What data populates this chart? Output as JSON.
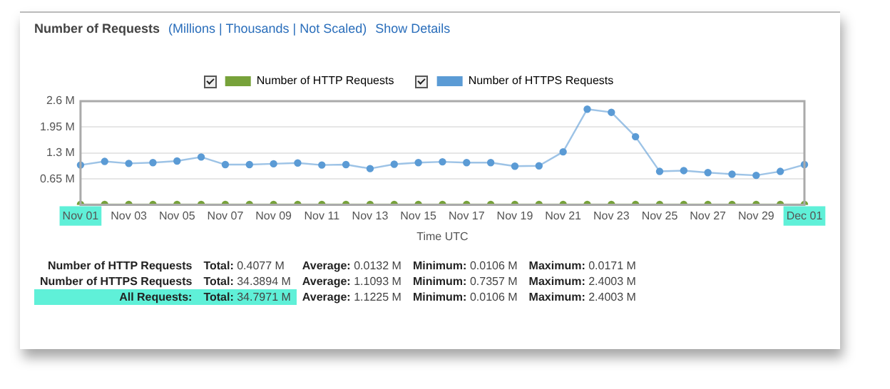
{
  "chart_data": {
    "type": "line",
    "title": "Number of Requests",
    "xlabel": "Time UTC",
    "categories": [
      "Nov 01",
      null,
      "Nov 03",
      null,
      "Nov 05",
      null,
      "Nov 07",
      null,
      "Nov 09",
      null,
      "Nov 11",
      null,
      "Nov 13",
      null,
      "Nov 15",
      null,
      "Nov 17",
      null,
      "Nov 19",
      null,
      "Nov 21",
      null,
      "Nov 23",
      null,
      "Nov 25",
      null,
      "Nov 27",
      null,
      "Nov 29",
      null,
      "Dec 01"
    ],
    "series": [
      {
        "name": "Number of HTTP Requests",
        "color": "#77a23a",
        "values": [
          0.01,
          0.01,
          0.01,
          0.01,
          0.01,
          0.01,
          0.01,
          0.01,
          0.01,
          0.01,
          0.01,
          0.01,
          0.01,
          0.01,
          0.01,
          0.01,
          0.01,
          0.01,
          0.01,
          0.01,
          0.01,
          0.01,
          0.01,
          0.01,
          0.01,
          0.01,
          0.01,
          0.01,
          0.01,
          0.01,
          0.01
        ]
      },
      {
        "name": "Number of HTTPS Requests",
        "color": "#5b9bd5",
        "values": [
          1.0,
          1.09,
          1.04,
          1.06,
          1.1,
          1.2,
          1.01,
          1.01,
          1.03,
          1.05,
          1.0,
          1.01,
          0.91,
          1.02,
          1.06,
          1.08,
          1.06,
          1.06,
          0.97,
          0.98,
          1.33,
          2.4,
          2.32,
          1.71,
          0.84,
          0.86,
          0.81,
          0.77,
          0.74,
          0.84,
          1.01
        ]
      }
    ],
    "ylim": [
      0,
      2.6
    ],
    "yticks": [
      {
        "value": 0,
        "label": null
      },
      {
        "value": 0.65,
        "label": "0.65 M"
      },
      {
        "value": 1.3,
        "label": "1.3 M"
      },
      {
        "value": 1.95,
        "label": "1.95 M"
      },
      {
        "value": 2.6,
        "label": "2.6 M"
      }
    ],
    "grid": "y",
    "legend": "top",
    "marker": "circle",
    "line_style": "solid",
    "annotations": [
      "(Millions | Thousands | Not Scaled)",
      "Show Details",
      "Number of HTTP Requests",
      "Total: 0.4077 M",
      "Average: 0.0132 M",
      "Minimum: 0.0106 M",
      "Maximum: 0.0171 M",
      "Number of HTTPS Requests",
      "Total: 34.3894 M",
      "Average: 1.1093 M",
      "Minimum: 0.7357 M",
      "Maximum: 2.4003 M",
      "All Requests:",
      "Total: 34.7971 M",
      "Average: 1.1225 M",
      "Minimum: 0.0106 M",
      "Maximum: 2.4003 M"
    ]
  }
}
